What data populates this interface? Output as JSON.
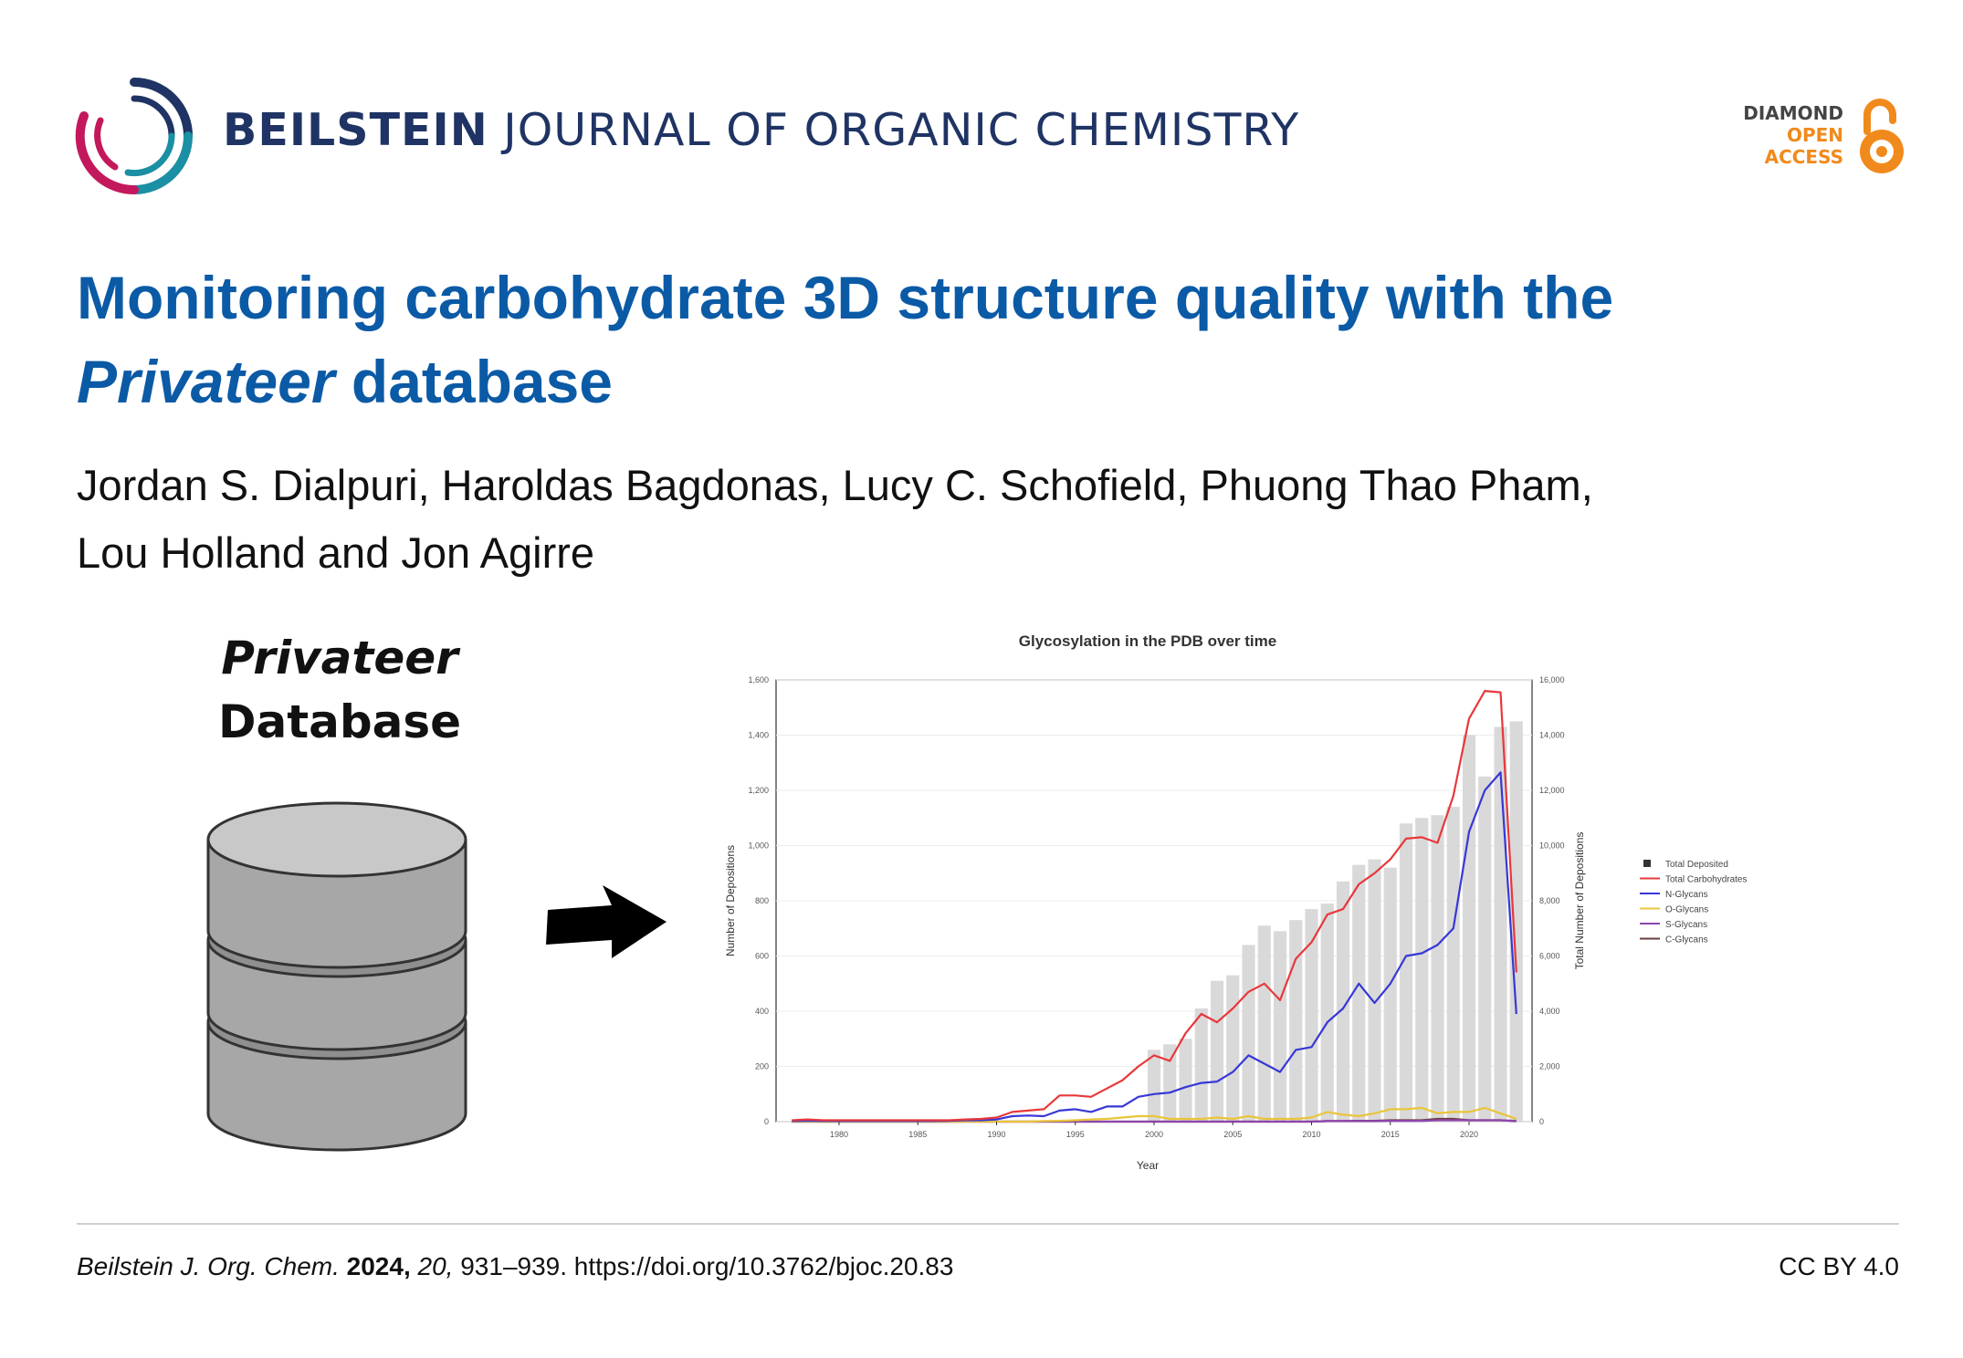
{
  "journal": {
    "name_bold": "BEILSTEIN",
    "name_rest": "JOURNAL OF ORGANIC CHEMISTRY"
  },
  "open_access_badge": {
    "line1": "DIAMOND",
    "line2": "OPEN",
    "line3": "ACCESS",
    "color_dark": "#444444",
    "color_orange": "#f08a1c"
  },
  "article": {
    "title_part1": "Monitoring carbohydrate 3D structure quality with the",
    "title_italic": "Privateer",
    "title_part2": "database",
    "authors_line1": "Jordan S. Dialpuri, Haroldas Bagdonas, Lucy C. Schofield, Phuong Thao Pham,",
    "authors_line2": "Lou Holland and Jon Agirre"
  },
  "graphic": {
    "db_label_line1": "Privateer",
    "db_label_line2": "Database",
    "icons": [
      "database-icon",
      "arrow-right-icon"
    ]
  },
  "chart_data": {
    "type": "line",
    "title": "Glycosylation in the PDB over time",
    "xlabel": "Year",
    "ylabel": "Number of Depositions",
    "y2label": "Total Number of Depositions",
    "xlim": [
      1976,
      2024
    ],
    "ylim": [
      0,
      1600
    ],
    "y2lim": [
      0,
      16000
    ],
    "x_ticks": [
      1980,
      1985,
      1990,
      1995,
      2000,
      2005,
      2010,
      2015,
      2020
    ],
    "y_ticks": [
      "0",
      "200",
      "400",
      "600",
      "800",
      "1,000",
      "1,200",
      "1,400",
      "1,600"
    ],
    "y2_ticks": [
      "0",
      "2,000",
      "4,000",
      "6,000",
      "8,000",
      "10,000",
      "12,000",
      "14,000",
      "16,000"
    ],
    "legend_position": "right",
    "x": [
      1977,
      1978,
      1979,
      1980,
      1981,
      1982,
      1983,
      1984,
      1985,
      1986,
      1987,
      1988,
      1989,
      1990,
      1991,
      1992,
      1993,
      1994,
      1995,
      1996,
      1997,
      1998,
      1999,
      2000,
      2001,
      2002,
      2003,
      2004,
      2005,
      2006,
      2007,
      2008,
      2009,
      2010,
      2011,
      2012,
      2013,
      2014,
      2015,
      2016,
      2017,
      2018,
      2019,
      2020,
      2021,
      2022,
      2023
    ],
    "bars": {
      "name": "Total Deposited",
      "color": "#d9d9d9",
      "values": [
        0,
        0,
        0,
        0,
        0,
        0,
        0,
        0,
        0,
        0,
        0,
        0,
        0,
        0,
        0,
        0,
        0,
        0,
        0,
        0,
        0,
        0,
        0,
        2600,
        2800,
        3000,
        4100,
        5100,
        5300,
        6400,
        7100,
        6900,
        7300,
        7700,
        7900,
        8700,
        9300,
        9500,
        9200,
        10800,
        11000,
        11100,
        11400,
        14000,
        12500,
        14300,
        14500
      ]
    },
    "series": [
      {
        "name": "Total Carbohydrates",
        "color": "#e8383b",
        "values": [
          5,
          8,
          5,
          5,
          5,
          5,
          5,
          5,
          5,
          5,
          5,
          8,
          10,
          15,
          35,
          40,
          45,
          95,
          95,
          90,
          120,
          150,
          200,
          240,
          220,
          320,
          390,
          360,
          410,
          470,
          500,
          440,
          590,
          650,
          750,
          770,
          860,
          900,
          950,
          1025,
          1030,
          1010,
          1180,
          1460,
          1560,
          1555,
          540
        ]
      },
      {
        "name": "N-Glycans",
        "color": "#3737d8",
        "values": [
          2,
          3,
          2,
          2,
          2,
          2,
          2,
          2,
          2,
          2,
          3,
          5,
          5,
          8,
          20,
          22,
          20,
          40,
          45,
          35,
          55,
          55,
          90,
          100,
          105,
          125,
          140,
          145,
          180,
          240,
          210,
          180,
          260,
          270,
          360,
          410,
          500,
          430,
          500,
          600,
          610,
          640,
          700,
          1050,
          1200,
          1265,
          390
        ]
      },
      {
        "name": "O-Glycans",
        "color": "#e9c53a",
        "values": [
          0,
          0,
          0,
          0,
          0,
          0,
          0,
          0,
          0,
          0,
          0,
          0,
          0,
          0,
          0,
          0,
          2,
          3,
          5,
          8,
          10,
          15,
          20,
          20,
          10,
          10,
          10,
          15,
          10,
          20,
          10,
          10,
          10,
          15,
          35,
          25,
          20,
          30,
          45,
          45,
          50,
          30,
          35,
          35,
          50,
          30,
          10
        ]
      },
      {
        "name": "S-Glycans",
        "color": "#8e44ad",
        "values": [
          0,
          0,
          0,
          0,
          0,
          0,
          0,
          0,
          0,
          0,
          0,
          0,
          0,
          0,
          0,
          0,
          0,
          0,
          0,
          0,
          0,
          0,
          0,
          0,
          0,
          0,
          0,
          0,
          0,
          0,
          0,
          0,
          0,
          0,
          2,
          2,
          2,
          2,
          3,
          3,
          3,
          5,
          5,
          5,
          5,
          5,
          2
        ]
      },
      {
        "name": "C-Glycans",
        "color": "#6b3e3e",
        "values": [
          0,
          0,
          0,
          0,
          0,
          0,
          0,
          0,
          0,
          0,
          0,
          0,
          0,
          0,
          0,
          0,
          0,
          0,
          0,
          0,
          0,
          0,
          0,
          0,
          0,
          0,
          0,
          0,
          0,
          0,
          0,
          0,
          0,
          0,
          2,
          2,
          3,
          3,
          5,
          5,
          5,
          10,
          10,
          5,
          5,
          5,
          2
        ]
      }
    ]
  },
  "footer": {
    "journal_abbrev": "Beilstein J. Org. Chem.",
    "year": "2024,",
    "volume": "20,",
    "pages_doi": "931–939. https://doi.org/10.3762/bjoc.20.83",
    "license": "CC BY 4.0"
  }
}
